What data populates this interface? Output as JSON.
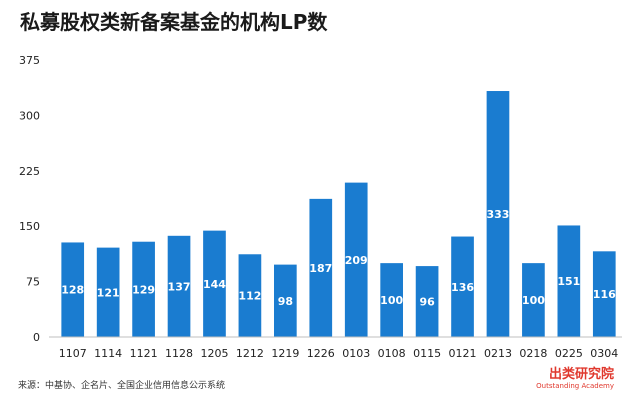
{
  "title": "私募股权类新备案基金的机构LP数",
  "source": "来源：中基协、企名片、全国企业信用信息公示系统",
  "brand": {
    "name": "出类研究院",
    "sub": "Outstanding Academy"
  },
  "colors": {
    "bar": "#1a7cd0",
    "bar_label": "#ffffff",
    "axis_text": "#222222",
    "grid": "#d9d9d9",
    "brand": "#e0392e"
  },
  "chart_data": {
    "type": "bar",
    "title": "私募股权类新备案基金的机构LP数",
    "xlabel": "",
    "ylabel": "",
    "categories": [
      "1107",
      "1114",
      "1121",
      "1128",
      "1205",
      "1212",
      "1219",
      "1226",
      "0103",
      "0108",
      "0115",
      "0121",
      "0213",
      "0218",
      "0225",
      "0304"
    ],
    "values": [
      128,
      121,
      129,
      137,
      144,
      112,
      98,
      187,
      209,
      100,
      96,
      136,
      333,
      100,
      151,
      116
    ],
    "ylim": [
      0,
      375
    ],
    "yticks": [
      0,
      75,
      150,
      225,
      300,
      375
    ],
    "grid": false,
    "legend": "none"
  }
}
